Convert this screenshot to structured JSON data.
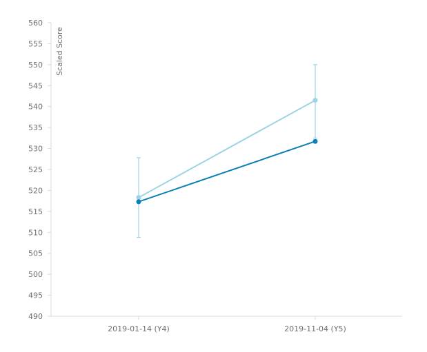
{
  "chart_data": {
    "type": "line",
    "ylabel": "Scaled Score",
    "xlabel": "",
    "title": "",
    "categories": [
      "2019-01-14 (Y4)",
      "2019-11-04 (Y5)"
    ],
    "ylim": [
      490,
      560
    ],
    "yticks": [
      490,
      495,
      500,
      505,
      510,
      515,
      520,
      525,
      530,
      535,
      540,
      545,
      550,
      555,
      560
    ],
    "grid": false,
    "legend": "none",
    "series": [
      {
        "color": "#9dd3e6",
        "values": [
          518.3,
          541.5
        ],
        "error_low": [
          508.8,
          532.5
        ],
        "error_high": [
          527.8,
          550.0
        ]
      },
      {
        "color": "#0a7fb5",
        "values": [
          517.3,
          531.7
        ]
      }
    ]
  }
}
